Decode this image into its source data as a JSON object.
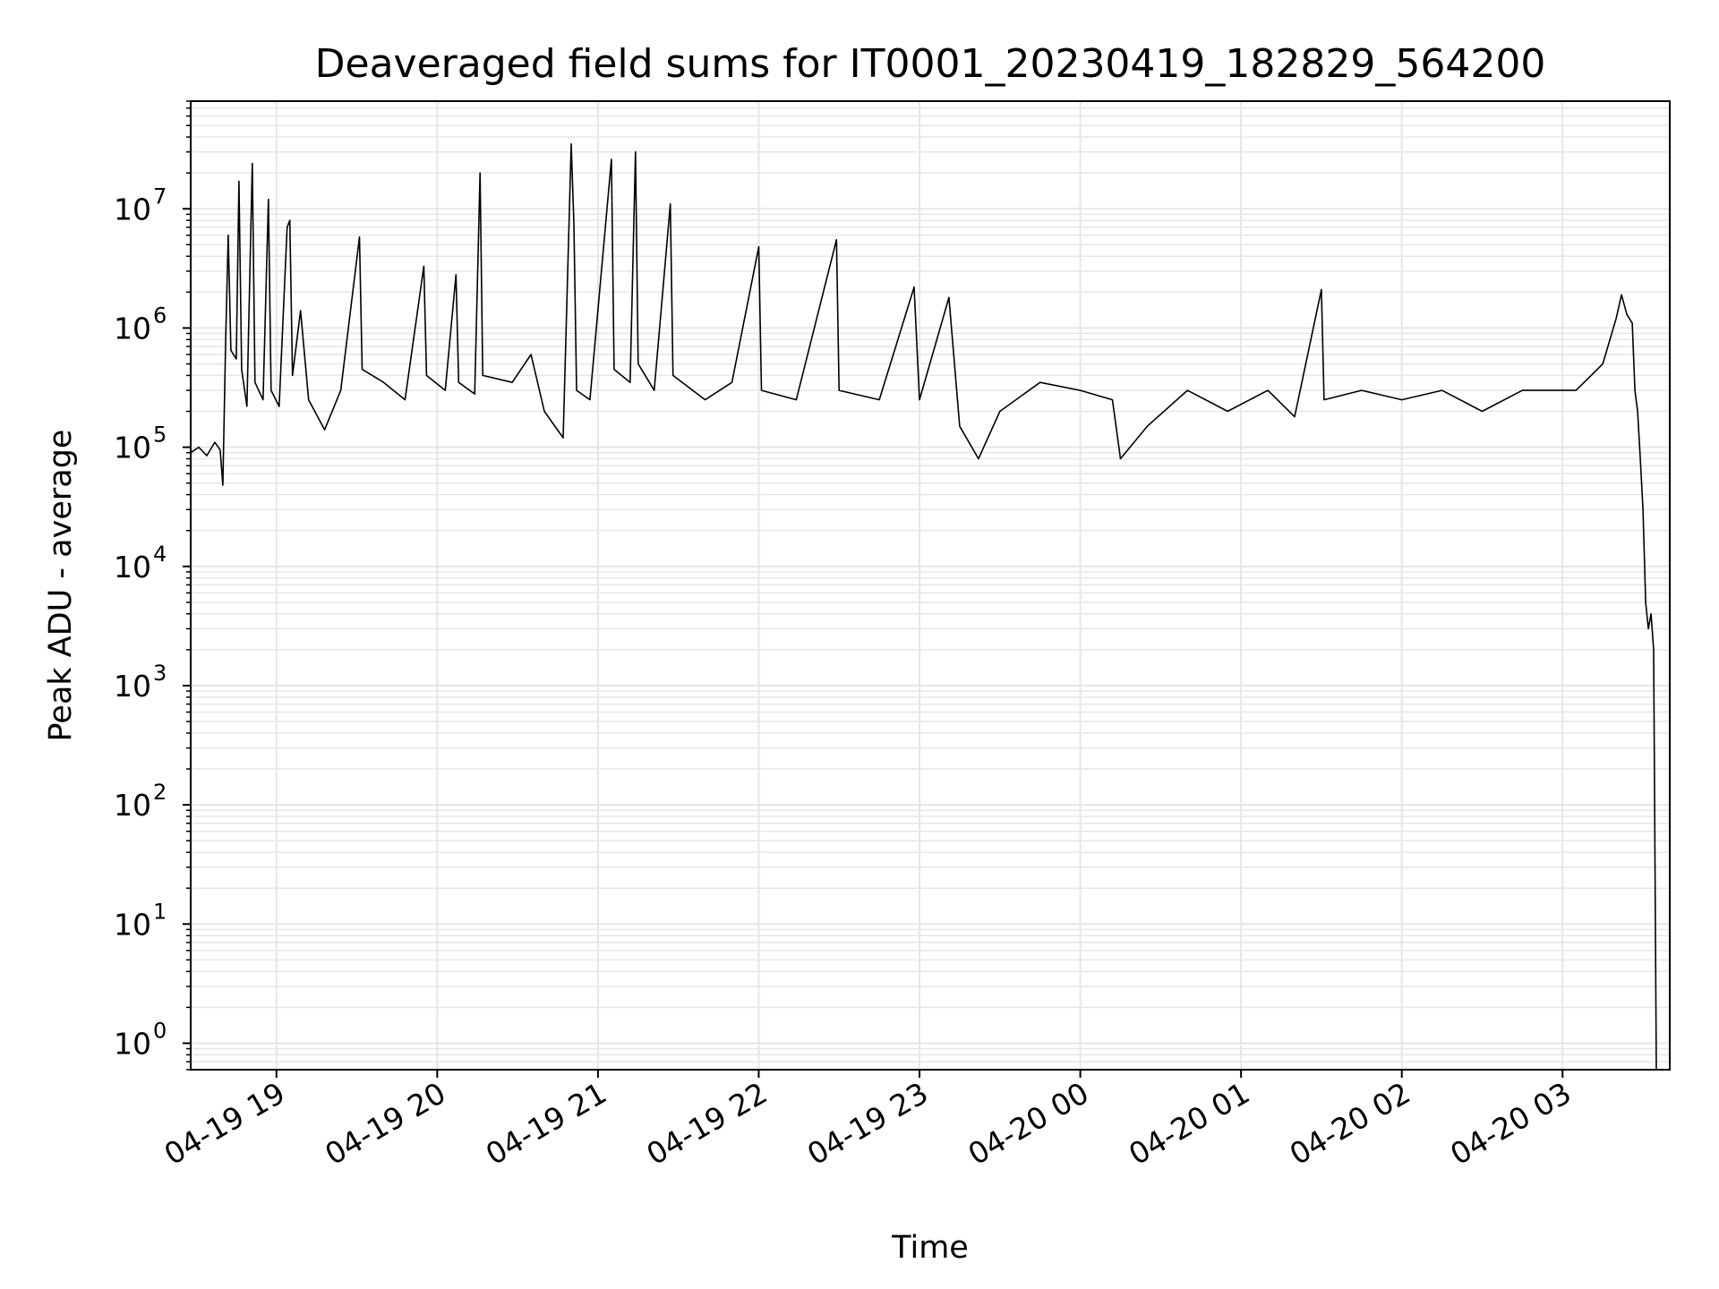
{
  "chart_data": {
    "type": "line",
    "title": "Deaveraged field sums for IT0001_20230419_182829_564200",
    "xlabel": "Time",
    "ylabel": "Peak ADU - average",
    "yscale": "log",
    "ylim": [
      0.6,
      80000000
    ],
    "xlim": [
      "2023-04-19 18:28",
      "2023-04-20 03:40"
    ],
    "grid": true,
    "line_color": "#000000",
    "x_ticks": [
      {
        "t": "2023-04-19 19:00",
        "label": "04-19 19"
      },
      {
        "t": "2023-04-19 20:00",
        "label": "04-19 20"
      },
      {
        "t": "2023-04-19 21:00",
        "label": "04-19 21"
      },
      {
        "t": "2023-04-19 22:00",
        "label": "04-19 22"
      },
      {
        "t": "2023-04-19 23:00",
        "label": "04-19 23"
      },
      {
        "t": "2023-04-20 00:00",
        "label": "04-20 00"
      },
      {
        "t": "2023-04-20 01:00",
        "label": "04-20 01"
      },
      {
        "t": "2023-04-20 02:00",
        "label": "04-20 02"
      },
      {
        "t": "2023-04-20 03:00",
        "label": "04-20 03"
      }
    ],
    "y_ticks": [
      {
        "value": 1,
        "base": "10",
        "exp": "0"
      },
      {
        "value": 10,
        "base": "10",
        "exp": "1"
      },
      {
        "value": 100,
        "base": "10",
        "exp": "2"
      },
      {
        "value": 1000,
        "base": "10",
        "exp": "3"
      },
      {
        "value": 10000,
        "base": "10",
        "exp": "4"
      },
      {
        "value": 100000,
        "base": "10",
        "exp": "5"
      },
      {
        "value": 1000000,
        "base": "10",
        "exp": "6"
      },
      {
        "value": 10000000,
        "base": "10",
        "exp": "7"
      }
    ],
    "series": [
      {
        "points": [
          [
            "2023-04-19 18:28",
            90000
          ],
          [
            "2023-04-19 18:31",
            100000
          ],
          [
            "2023-04-19 18:34",
            85000
          ],
          [
            "2023-04-19 18:37",
            110000
          ],
          [
            "2023-04-19 18:39",
            95000
          ],
          [
            "2023-04-19 18:40",
            48000
          ],
          [
            "2023-04-19 18:41",
            700000
          ],
          [
            "2023-04-19 18:42",
            6000000
          ],
          [
            "2023-04-19 18:43",
            650000
          ],
          [
            "2023-04-19 18:45",
            550000
          ],
          [
            "2023-04-19 18:46",
            17000000
          ],
          [
            "2023-04-19 18:47",
            450000
          ],
          [
            "2023-04-19 18:49",
            220000
          ],
          [
            "2023-04-19 18:51",
            24000000
          ],
          [
            "2023-04-19 18:52",
            350000
          ],
          [
            "2023-04-19 18:55",
            250000
          ],
          [
            "2023-04-19 18:57",
            12000000
          ],
          [
            "2023-04-19 18:58",
            300000
          ],
          [
            "2023-04-19 19:01",
            220000
          ],
          [
            "2023-04-19 19:04",
            7000000
          ],
          [
            "2023-04-19 19:05",
            8000000
          ],
          [
            "2023-04-19 19:06",
            400000
          ],
          [
            "2023-04-19 19:09",
            1400000
          ],
          [
            "2023-04-19 19:12",
            250000
          ],
          [
            "2023-04-19 19:18",
            140000
          ],
          [
            "2023-04-19 19:24",
            300000
          ],
          [
            "2023-04-19 19:31",
            5800000
          ],
          [
            "2023-04-19 19:32",
            450000
          ],
          [
            "2023-04-19 19:40",
            350000
          ],
          [
            "2023-04-19 19:48",
            250000
          ],
          [
            "2023-04-19 19:55",
            3300000
          ],
          [
            "2023-04-19 19:56",
            400000
          ],
          [
            "2023-04-19 20:03",
            300000
          ],
          [
            "2023-04-19 20:07",
            2800000
          ],
          [
            "2023-04-19 20:08",
            350000
          ],
          [
            "2023-04-19 20:14",
            280000
          ],
          [
            "2023-04-19 20:16",
            20000000
          ],
          [
            "2023-04-19 20:17",
            400000
          ],
          [
            "2023-04-19 20:28",
            350000
          ],
          [
            "2023-04-19 20:35",
            600000
          ],
          [
            "2023-04-19 20:40",
            200000
          ],
          [
            "2023-04-19 20:47",
            120000
          ],
          [
            "2023-04-19 20:50",
            35000000
          ],
          [
            "2023-04-19 20:51",
            7500000
          ],
          [
            "2023-04-19 20:52",
            300000
          ],
          [
            "2023-04-19 20:57",
            250000
          ],
          [
            "2023-04-19 21:05",
            26000000
          ],
          [
            "2023-04-19 21:06",
            450000
          ],
          [
            "2023-04-19 21:12",
            350000
          ],
          [
            "2023-04-19 21:14",
            30000000
          ],
          [
            "2023-04-19 21:15",
            500000
          ],
          [
            "2023-04-19 21:21",
            300000
          ],
          [
            "2023-04-19 21:27",
            11000000
          ],
          [
            "2023-04-19 21:28",
            400000
          ],
          [
            "2023-04-19 21:40",
            250000
          ],
          [
            "2023-04-19 21:50",
            350000
          ],
          [
            "2023-04-19 22:00",
            4800000
          ],
          [
            "2023-04-19 22:01",
            300000
          ],
          [
            "2023-04-19 22:14",
            250000
          ],
          [
            "2023-04-19 22:29",
            5500000
          ],
          [
            "2023-04-19 22:30",
            300000
          ],
          [
            "2023-04-19 22:45",
            250000
          ],
          [
            "2023-04-19 22:58",
            2200000
          ],
          [
            "2023-04-19 23:00",
            250000
          ],
          [
            "2023-04-19 23:11",
            1800000
          ],
          [
            "2023-04-19 23:15",
            150000
          ],
          [
            "2023-04-19 23:22",
            80000
          ],
          [
            "2023-04-19 23:30",
            200000
          ],
          [
            "2023-04-19 23:45",
            350000
          ],
          [
            "2023-04-20 00:00",
            300000
          ],
          [
            "2023-04-20 00:12",
            250000
          ],
          [
            "2023-04-20 00:15",
            80000
          ],
          [
            "2023-04-20 00:25",
            150000
          ],
          [
            "2023-04-20 00:40",
            300000
          ],
          [
            "2023-04-20 00:55",
            200000
          ],
          [
            "2023-04-20 01:10",
            300000
          ],
          [
            "2023-04-20 01:20",
            180000
          ],
          [
            "2023-04-20 01:30",
            2100000
          ],
          [
            "2023-04-20 01:31",
            250000
          ],
          [
            "2023-04-20 01:45",
            300000
          ],
          [
            "2023-04-20 02:00",
            250000
          ],
          [
            "2023-04-20 02:15",
            300000
          ],
          [
            "2023-04-20 02:30",
            200000
          ],
          [
            "2023-04-20 02:45",
            300000
          ],
          [
            "2023-04-20 03:05",
            300000
          ],
          [
            "2023-04-20 03:15",
            500000
          ],
          [
            "2023-04-20 03:20",
            1200000
          ],
          [
            "2023-04-20 03:22",
            1900000
          ],
          [
            "2023-04-20 03:24",
            1300000
          ],
          [
            "2023-04-20 03:26",
            1100000
          ],
          [
            "2023-04-20 03:27",
            300000
          ],
          [
            "2023-04-20 03:28",
            200000
          ],
          [
            "2023-04-20 03:29",
            80000
          ],
          [
            "2023-04-20 03:30",
            30000
          ],
          [
            "2023-04-20 03:31",
            5000
          ],
          [
            "2023-04-20 03:32",
            3000
          ],
          [
            "2023-04-20 03:33",
            4000
          ],
          [
            "2023-04-20 03:34",
            2000
          ],
          [
            "2023-04-20 03:35",
            0.6
          ]
        ]
      }
    ]
  }
}
